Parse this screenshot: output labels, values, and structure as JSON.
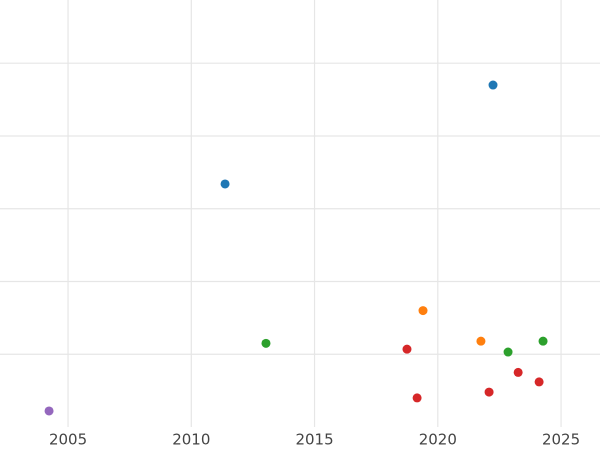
{
  "chart_data": {
    "type": "scatter",
    "xlim": [
      2002.24,
      2026.58
    ],
    "xticks": [
      2005,
      2010,
      2015,
      2020,
      2025
    ],
    "ylim": [
      0,
      5.8
    ],
    "yticks": [
      1,
      2,
      3,
      4,
      5
    ],
    "grid": true,
    "series": [
      {
        "color": "#1f77b4",
        "x": [
          2022.24,
          2011.37
        ],
        "values": [
          4.7,
          3.34
        ]
      },
      {
        "color": "#ff7f0e",
        "x": [
          2019.4,
          2021.75
        ],
        "values": [
          1.6,
          1.18
        ]
      },
      {
        "color": "#2ca02c",
        "x": [
          2013.03,
          2022.85,
          2024.27
        ],
        "values": [
          1.15,
          1.03,
          1.18
        ]
      },
      {
        "color": "#d62728",
        "x": [
          2018.75,
          2019.16,
          2022.08,
          2023.26,
          2024.11
        ],
        "values": [
          1.07,
          0.4,
          0.48,
          0.75,
          0.62
        ]
      },
      {
        "color": "#9467bd",
        "x": [
          2004.23
        ],
        "values": [
          0.22
        ]
      }
    ]
  }
}
